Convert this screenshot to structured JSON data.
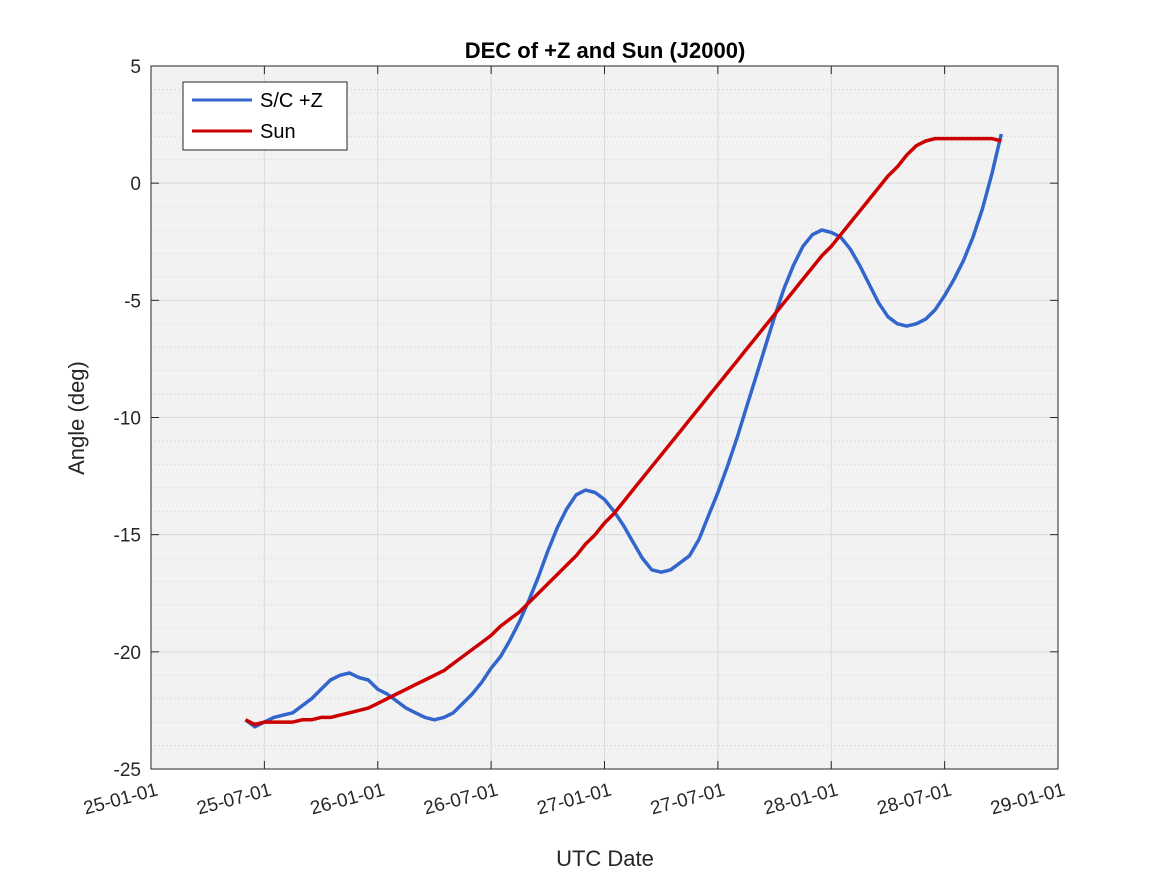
{
  "chart_data": {
    "type": "line",
    "title": "DEC of +Z and Sun (J2000)",
    "xlabel": "UTC Date",
    "ylabel": "Angle (deg)",
    "x_ticks": [
      "25-01-01",
      "25-07-01",
      "26-01-01",
      "26-07-01",
      "27-01-01",
      "27-07-01",
      "28-01-01",
      "28-07-01",
      "29-01-01"
    ],
    "y_ticks": [
      5,
      0,
      -5,
      -10,
      -15,
      -20,
      -25
    ],
    "ylim": [
      -25,
      5
    ],
    "xlim_months": [
      0,
      48
    ],
    "grid": true,
    "minor_grid_y": true,
    "legend_position": "top-left",
    "background": "#f2f2f2",
    "series": [
      {
        "name": "S/C +Z",
        "color": "#3366cc",
        "x_months": [
          5.0,
          5.5,
          6.0,
          6.5,
          7.0,
          7.5,
          8.0,
          8.5,
          9.0,
          9.5,
          10.0,
          10.5,
          11.0,
          11.5,
          12.0,
          12.5,
          13.0,
          13.5,
          14.0,
          14.5,
          15.0,
          15.5,
          16.0,
          16.5,
          17.0,
          17.5,
          18.0,
          18.5,
          19.0,
          19.5,
          20.0,
          20.5,
          21.0,
          21.5,
          22.0,
          22.5,
          23.0,
          23.5,
          24.0,
          24.5,
          25.0,
          25.5,
          26.0,
          26.5,
          27.0,
          27.5,
          28.0,
          28.5,
          29.0,
          29.5,
          30.0,
          30.5,
          31.0,
          31.5,
          32.0,
          32.5,
          33.0,
          33.5,
          34.0,
          34.5,
          35.0,
          35.5,
          36.0,
          36.5,
          37.0,
          37.5,
          38.0,
          38.5,
          39.0,
          39.5,
          40.0,
          40.5,
          41.0,
          41.5,
          42.0,
          42.5,
          43.0,
          43.5,
          44.0,
          44.5,
          45.0
        ],
        "values": [
          -22.9,
          -23.2,
          -23.0,
          -22.8,
          -22.7,
          -22.6,
          -22.3,
          -22.0,
          -21.6,
          -21.2,
          -21.0,
          -20.9,
          -21.1,
          -21.2,
          -21.6,
          -21.8,
          -22.1,
          -22.4,
          -22.6,
          -22.8,
          -22.9,
          -22.8,
          -22.6,
          -22.2,
          -21.8,
          -21.3,
          -20.7,
          -20.2,
          -19.5,
          -18.7,
          -17.8,
          -16.8,
          -15.7,
          -14.7,
          -13.9,
          -13.3,
          -13.1,
          -13.2,
          -13.5,
          -14.0,
          -14.6,
          -15.3,
          -16.0,
          -16.5,
          -16.6,
          -16.5,
          -16.2,
          -15.9,
          -15.2,
          -14.2,
          -13.2,
          -12.1,
          -10.9,
          -9.6,
          -8.3,
          -7.0,
          -5.7,
          -4.5,
          -3.5,
          -2.7,
          -2.2,
          -2.0,
          -2.1,
          -2.3,
          -2.8,
          -3.5,
          -4.3,
          -5.1,
          -5.7,
          -6.0,
          -6.1,
          -6.0,
          -5.8,
          -5.4,
          -4.8,
          -4.1,
          -3.3,
          -2.3,
          -1.1,
          0.4,
          2.1
        ]
      },
      {
        "name": "Sun",
        "color": "#cc0000",
        "x_months": [
          5.0,
          5.5,
          6.0,
          6.5,
          7.0,
          7.5,
          8.0,
          8.5,
          9.0,
          9.5,
          10.0,
          10.5,
          11.0,
          11.5,
          12.0,
          12.5,
          13.0,
          13.5,
          14.0,
          14.5,
          15.0,
          15.5,
          16.0,
          16.5,
          17.0,
          17.5,
          18.0,
          18.5,
          19.0,
          19.5,
          20.0,
          20.5,
          21.0,
          21.5,
          22.0,
          22.5,
          23.0,
          23.5,
          24.0,
          24.5,
          25.0,
          25.5,
          26.0,
          26.5,
          27.0,
          27.5,
          28.0,
          28.5,
          29.0,
          29.5,
          30.0,
          30.5,
          31.0,
          31.5,
          32.0,
          32.5,
          33.0,
          33.5,
          34.0,
          34.5,
          35.0,
          35.5,
          36.0,
          36.5,
          37.0,
          37.5,
          38.0,
          38.5,
          39.0,
          39.5,
          40.0,
          40.5,
          41.0,
          41.5,
          42.0,
          42.5,
          43.0,
          43.5,
          44.0,
          44.5,
          45.0
        ],
        "values": [
          -22.9,
          -23.1,
          -23.0,
          -23.0,
          -23.0,
          -23.0,
          -22.9,
          -22.9,
          -22.8,
          -22.8,
          -22.7,
          -22.6,
          -22.5,
          -22.4,
          -22.2,
          -22.0,
          -21.8,
          -21.6,
          -21.4,
          -21.2,
          -21.0,
          -20.8,
          -20.5,
          -20.2,
          -19.9,
          -19.6,
          -19.3,
          -18.9,
          -18.6,
          -18.3,
          -17.9,
          -17.5,
          -17.1,
          -16.7,
          -16.3,
          -15.9,
          -15.4,
          -15.0,
          -14.5,
          -14.1,
          -13.6,
          -13.1,
          -12.6,
          -12.1,
          -11.6,
          -11.1,
          -10.6,
          -10.1,
          -9.6,
          -9.1,
          -8.6,
          -8.1,
          -7.6,
          -7.1,
          -6.6,
          -6.1,
          -5.6,
          -5.1,
          -4.6,
          -4.1,
          -3.6,
          -3.1,
          -2.7,
          -2.2,
          -1.7,
          -1.2,
          -0.7,
          -0.2,
          0.3,
          0.7,
          1.2,
          1.6,
          1.8,
          1.9,
          1.9,
          1.9,
          1.9,
          1.9,
          1.9,
          1.9,
          1.8
        ]
      }
    ]
  }
}
